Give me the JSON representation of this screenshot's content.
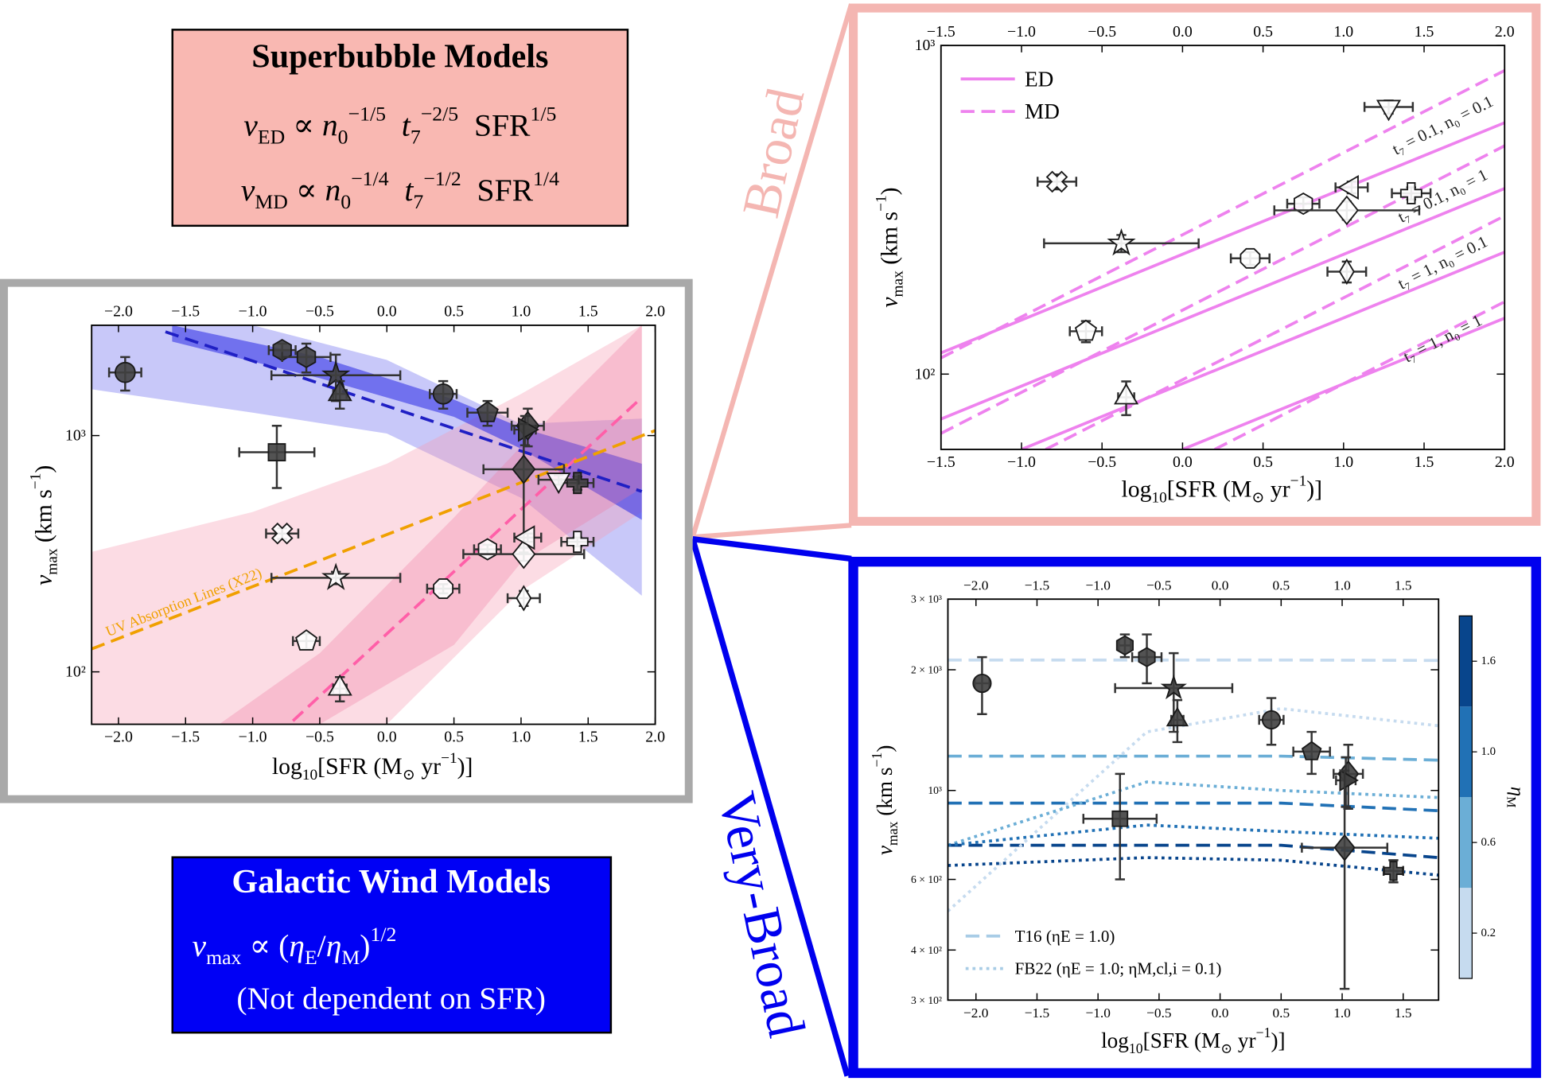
{
  "superbubble_box": {
    "title": "Superbubble Models",
    "formulas": [
      [
        {
          "t": "v",
          "sub": "ED"
        },
        {
          "t": " ∝ "
        },
        {
          "t": "n",
          "sub": "0",
          "sup": "−1/5"
        },
        {
          "t": "  t",
          "sub": "7",
          "sup": "−2/5"
        },
        {
          "t": "  SFR",
          "sup": "1/5"
        }
      ],
      [
        {
          "t": "v",
          "sub": "MD"
        },
        {
          "t": " ∝ "
        },
        {
          "t": "n",
          "sub": "0",
          "sup": "−1/4"
        },
        {
          "t": "  t",
          "sub": "7",
          "sup": "−1/2"
        },
        {
          "t": "  SFR",
          "sup": "1/4"
        }
      ]
    ]
  },
  "wind_box": {
    "title": "Galactic Wind Models",
    "formulas": [
      [
        {
          "t": "v",
          "sub": "max"
        },
        {
          "t": " ∝ ("
        },
        {
          "t": "η",
          "sub": "E"
        },
        {
          "t": "/"
        },
        {
          "t": "η",
          "sub": "M"
        },
        {
          "t": ")",
          "sup": "1/2"
        }
      ],
      [
        {
          "t": "(Not dependent on SFR)"
        }
      ]
    ]
  },
  "labels": {
    "broad": "Broad",
    "very_broad": "Very-Broad"
  },
  "chart_data": [
    {
      "type": "scatter",
      "log_y": true,
      "xlim": [
        -2.2,
        2.0
      ],
      "ylim": [
        60,
        2930
      ],
      "xticks": [
        {
          "value": -2,
          "label": "−2.0"
        },
        {
          "value": -1.5,
          "label": "−1.5"
        },
        {
          "value": -1,
          "label": "−1.0"
        },
        {
          "value": -0.5,
          "label": "−0.5"
        },
        {
          "value": 0,
          "label": "0.0"
        },
        0.5,
        {
          "value": 1,
          "label": "1.0"
        },
        1.5,
        {
          "value": 2,
          "label": "2.0"
        }
      ],
      "yticks": [
        {
          "value": 100,
          "label": "10²"
        },
        {
          "value": 1000,
          "label": "10³"
        }
      ],
      "xlabel": [
        {
          "t": "log",
          "sub": "10"
        },
        {
          "t": "[SFR (M",
          "sub": "⊙"
        },
        {
          "t": " yr",
          "sup": "−1"
        },
        {
          "t": ")]"
        }
      ],
      "ylabel": [
        {
          "t": "v",
          "sub": "max"
        },
        {
          "t": " (km s",
          "sup": "−1"
        },
        {
          "t": ")"
        }
      ],
      "bands": [
        {
          "color": "#3a3ae8",
          "opacity": 0.28,
          "x": [
            -2.2,
            -1,
            0,
            1,
            1.9
          ],
          "lower": [
            1570,
            1250,
            1020,
            545,
            210
          ],
          "upper": [
            2930,
            2930,
            2090,
            1120,
            1180
          ]
        },
        {
          "color": "#f59ab2",
          "opacity": 0.35,
          "x": [
            -2.2,
            -1,
            0,
            1,
            1.9
          ],
          "lower": [
            60,
            60,
            60,
            220,
            475
          ],
          "upper": [
            322,
            475,
            760,
            1500,
            2930
          ]
        },
        {
          "color": "#2a2ae6",
          "opacity": 0.55,
          "x": [
            -1.6,
            -0.5,
            0.5,
            1,
            1.9
          ],
          "lower": [
            2500,
            1750,
            1200,
            880,
            440
          ],
          "upper": [
            2930,
            2150,
            1420,
            1080,
            760
          ]
        },
        {
          "color": "#f0789e",
          "opacity": 0.3,
          "x": [
            -1.25,
            -0.5,
            0.5,
            1,
            1.9
          ],
          "lower": [
            60,
            60,
            130,
            290,
            600
          ],
          "upper": [
            60,
            120,
            450,
            900,
            2930
          ]
        }
      ],
      "lines": [
        {
          "color": "#1f1fc4",
          "dash": "dashed",
          "x": [
            -1.65,
            1.9
          ],
          "y": [
            2750,
            580
          ]
        },
        {
          "color": "#ff5fa8",
          "dash": "dashed",
          "x": [
            -0.7,
            1.9
          ],
          "y": [
            62,
            1450
          ]
        },
        {
          "color": "#f0a000",
          "dash": "dashed",
          "x": [
            -2.2,
            2.0
          ],
          "y": [
            125,
            1050
          ],
          "label": "UV Absorption Lines (X22)"
        }
      ],
      "points": {
        "x": [
          -1.95,
          -0.78,
          -0.6,
          -0.38,
          -0.35,
          -0.82,
          0.42,
          0.75,
          1.05,
          1.03,
          1.02,
          1.42,
          -0.78,
          -0.38,
          -0.6,
          -0.35,
          0.42,
          0.75,
          1.02,
          1.02,
          1.05,
          1.28,
          1.42
        ],
        "y": [
          1850,
          2300,
          2150,
          1800,
          1500,
          850,
          1500,
          1250,
          1100,
          1060,
          720,
          630,
          385,
          250,
          135,
          85,
          225,
          330,
          205,
          315,
          370,
          650,
          355
        ],
        "xerr": [
          0.12,
          0.1,
          0.18,
          0.48,
          0.05,
          0.28,
          0.1,
          0.15,
          0.12,
          0.08,
          0.3,
          0.12,
          0.12,
          0.48,
          0.1,
          0.05,
          0.12,
          0.1,
          0.12,
          0.45,
          0.1,
          0.15,
          0.12
        ],
        "yerr": [
          300,
          150,
          300,
          400,
          200,
          250,
          200,
          150,
          200,
          150,
          400,
          40,
          20,
          15,
          10,
          10,
          10,
          15,
          15,
          20,
          15,
          30,
          15
        ],
        "markers": [
          "o",
          "h",
          "h",
          "*",
          "^",
          "s",
          "o",
          "p",
          "D",
          ">",
          "D",
          "P",
          "X",
          "*",
          "p",
          "^",
          "8",
          "h",
          "d",
          "D",
          "<",
          "v",
          "P"
        ],
        "fills": [
          "#404040",
          "#404040",
          "#404040",
          "#404040",
          "#404040",
          "#404040",
          "#404040",
          "#404040",
          "#404040",
          "#404040",
          "#404040",
          "#404040",
          "#ffffff",
          "#ffffff",
          "#ffffff",
          "#ffffff",
          "#ffffff",
          "#ffffff",
          "#ffffff",
          "#ffffff",
          "#ffffff",
          "#ffffff",
          "#ffffff"
        ]
      }
    },
    {
      "type": "scatter",
      "log_y": true,
      "xlim": [
        -1.5,
        2.0
      ],
      "ylim": [
        59,
        1000
      ],
      "xticks": [
        {
          "value": -1.5,
          "label": "−1.5"
        },
        {
          "value": -1,
          "label": "−1.0"
        },
        {
          "value": -0.5,
          "label": "−0.5"
        },
        {
          "value": 0,
          "label": "0.0"
        },
        0.5,
        {
          "value": 1,
          "label": "1.0"
        },
        1.5,
        {
          "value": 2,
          "label": "2.0"
        }
      ],
      "yticks": [
        {
          "value": 100,
          "label": "10²"
        },
        {
          "value": 1000,
          "label": "10³"
        }
      ],
      "xlabel": [
        {
          "t": "log",
          "sub": "10"
        },
        {
          "t": "[SFR (M",
          "sub": "⊙"
        },
        {
          "t": " yr",
          "sup": "−1"
        },
        {
          "t": ")]"
        }
      ],
      "ylabel": [
        {
          "t": "v",
          "sub": "max"
        },
        {
          "t": " (km s",
          "sup": "−1"
        },
        {
          "t": ")"
        }
      ],
      "series": [
        {
          "name": "ED",
          "color": "#ee82ee",
          "dash": "solid",
          "lines": [
            {
              "x": [
                -1.5,
                2.0
              ],
              "y": [
                116,
                582
              ]
            },
            {
              "x": [
                -1.5,
                2.0
              ],
              "y": [
                73,
                367
              ]
            },
            {
              "x": [
                -1.0,
                2.0
              ],
              "y": [
                59,
                235
              ]
            },
            {
              "x": [
                0.0,
                2.0
              ],
              "y": [
                59,
                148
              ]
            }
          ]
        },
        {
          "name": "MD",
          "color": "#ee82ee",
          "dash": "dashed",
          "lines": [
            {
              "x": [
                -1.5,
                2.0
              ],
              "y": [
                112,
                839
              ]
            },
            {
              "x": [
                -1.5,
                2.0
              ],
              "y": [
                66,
                495
              ]
            },
            {
              "x": [
                -0.85,
                2.0
              ],
              "y": [
                59,
                303
              ]
            },
            {
              "x": [
                0.2,
                2.0
              ],
              "y": [
                59,
                166
              ]
            }
          ]
        }
      ],
      "annotations": [
        "t₇ = 0.1, n₀ = 0.1",
        "t₇ = 0.1, n₀ = 1",
        "t₇ = 1, n₀ = 0.1",
        "t₇ = 1, n₀ = 1"
      ],
      "points": {
        "x": [
          -0.78,
          -0.38,
          -0.6,
          -0.35,
          0.42,
          0.75,
          1.02,
          1.02,
          1.05,
          1.28,
          1.42
        ],
        "y": [
          385,
          250,
          135,
          85,
          225,
          330,
          205,
          315,
          370,
          650,
          355
        ],
        "xerr": [
          0.12,
          0.48,
          0.1,
          0.05,
          0.12,
          0.1,
          0.12,
          0.45,
          0.1,
          0.15,
          0.12
        ],
        "yerr": [
          20,
          15,
          10,
          10,
          10,
          15,
          15,
          20,
          15,
          30,
          15
        ],
        "markers": [
          "X",
          "*",
          "p",
          "^",
          "8",
          "h",
          "d",
          "D",
          "<",
          "v",
          "P"
        ],
        "fills": [
          "#ffffff",
          "#ffffff",
          "#ffffff",
          "#ffffff",
          "#ffffff",
          "#ffffff",
          "#ffffff",
          "#ffffff",
          "#ffffff",
          "#ffffff",
          "#ffffff"
        ]
      }
    },
    {
      "type": "scatter",
      "log_y": true,
      "xlim": [
        -2.23,
        1.79
      ],
      "ylim": [
        300,
        3000
      ],
      "xticks": [
        {
          "value": -2,
          "label": "−2.0"
        },
        {
          "value": -1.5,
          "label": "−1.5"
        },
        {
          "value": -1,
          "label": "−1.0"
        },
        {
          "value": -0.5,
          "label": "−0.5"
        },
        {
          "value": 0,
          "label": "0.0"
        },
        0.5,
        {
          "value": 1,
          "label": "1.0"
        },
        1.5
      ],
      "yticks": [
        {
          "value": 300,
          "label": "3 × 10²"
        },
        {
          "value": 400,
          "label": "4 × 10²"
        },
        {
          "value": 600,
          "label": "6 × 10²"
        },
        {
          "value": 1000,
          "label": "10³"
        },
        {
          "value": 2000,
          "label": "2 × 10³"
        },
        {
          "value": 3000,
          "label": "3 × 10³"
        }
      ],
      "xlabel": [
        {
          "t": "log",
          "sub": "10"
        },
        {
          "t": "[SFR (M",
          "sub": "⊙"
        },
        {
          "t": " yr",
          "sup": "−1"
        },
        {
          "t": ")]"
        }
      ],
      "ylabel": [
        {
          "t": "v",
          "sub": "max"
        },
        {
          "t": " (km s",
          "sup": "−1"
        },
        {
          "t": ")"
        }
      ],
      "series": [
        {
          "name": "T16 (ηE = 1.0)",
          "color": "#a8cce6",
          "dash": "dashed",
          "lines": [
            {
              "color": "#c6dbef",
              "x": [
                -2.23,
                0.5,
                1.79
              ],
              "y": [
                2115,
                2115,
                2110
              ]
            },
            {
              "color": "#6baed6",
              "x": [
                -2.23,
                0.5,
                1.79
              ],
              "y": [
                1218,
                1218,
                1190
              ]
            },
            {
              "color": "#2171b5",
              "x": [
                -2.23,
                0.5,
                1.79
              ],
              "y": [
                930,
                930,
                890
              ]
            },
            {
              "color": "#08458c",
              "x": [
                -2.23,
                0.5,
                1.79
              ],
              "y": [
                730,
                730,
                680
              ]
            }
          ]
        },
        {
          "name": "FB22 (ηE = 1.0; ηM,cl,i = 0.1)",
          "color": "#a8cce6",
          "dash": "dotted",
          "lines": [
            {
              "color": "#c6dbef",
              "x": [
                -2.23,
                -0.6,
                0.5,
                1.79
              ],
              "y": [
                500,
                1400,
                1600,
                1450
              ]
            },
            {
              "color": "#6baed6",
              "x": [
                -2.23,
                -0.6,
                0.5,
                1.79
              ],
              "y": [
                730,
                1050,
                1000,
                960
              ]
            },
            {
              "color": "#2171b5",
              "x": [
                -2.23,
                -0.6,
                0.5,
                1.79
              ],
              "y": [
                730,
                820,
                790,
                760
              ]
            },
            {
              "color": "#08458c",
              "x": [
                -2.23,
                -0.6,
                0.5,
                1.79
              ],
              "y": [
                650,
                680,
                670,
                615
              ]
            }
          ]
        }
      ],
      "colorbar": {
        "label": [
          {
            "t": "η",
            "sub": "M"
          }
        ],
        "ticks": [
          0.2,
          0.6,
          {
            "value": 1,
            "label": "1.0"
          },
          1.6
        ],
        "colors": [
          "#c6dbef",
          "#6baed6",
          "#2171b5",
          "#08458c"
        ]
      },
      "points": {
        "x": [
          -1.95,
          -0.78,
          -0.6,
          -0.38,
          -0.35,
          -0.82,
          0.42,
          0.75,
          1.05,
          1.03,
          1.02,
          1.42
        ],
        "y": [
          1850,
          2300,
          2150,
          1800,
          1500,
          850,
          1500,
          1250,
          1100,
          1060,
          720,
          630
        ],
        "xerr": [
          0.06,
          0.05,
          0.12,
          0.48,
          0.05,
          0.3,
          0.1,
          0.15,
          0.12,
          0.08,
          0.35,
          0.08
        ],
        "yerr": [
          300,
          150,
          300,
          400,
          180,
          250,
          200,
          150,
          200,
          150,
          400,
          40
        ],
        "markers": [
          "o",
          "h",
          "h",
          "*",
          "^",
          "s",
          "o",
          "p",
          "D",
          ">",
          "D",
          "P"
        ],
        "fills": [
          "#404040",
          "#404040",
          "#404040",
          "#404040",
          "#404040",
          "#404040",
          "#404040",
          "#404040",
          "#404040",
          "#404040",
          "#404040",
          "#404040"
        ]
      }
    }
  ]
}
